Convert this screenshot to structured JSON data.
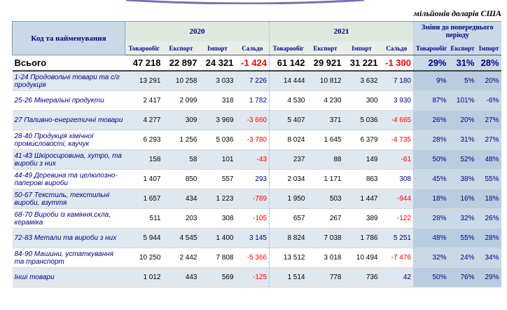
{
  "units": "мільйонів доларів США",
  "header": {
    "name": "Код та найменування",
    "year1": "2020",
    "year2": "2021",
    "change": "Зміни до попереднього періоду",
    "cols": [
      "Товарообіг",
      "Експорт",
      "Імпорт",
      "Сальдо",
      "Товарообіг",
      "Експорт",
      "Імпорт",
      "Сальдо",
      "Товарообіг",
      "Експорт",
      "Імпорт"
    ]
  },
  "total": {
    "name": "Всього",
    "values": [
      "47 218",
      "22 897",
      "24 321",
      "-1 424",
      "61 142",
      "29 921",
      "31 221",
      "-1 300",
      "29%",
      "31%",
      "28%"
    ]
  },
  "rows": [
    {
      "name": "1-24 Продовольчі товари та с/г продукція",
      "values": [
        "13 291",
        "10 258",
        "3 033",
        "7 226",
        "14 444",
        "10 812",
        "3 632",
        "7 180",
        "9%",
        "5%",
        "20%"
      ]
    },
    {
      "name": "25-26 Мінеральні продукти",
      "values": [
        "2 417",
        "2 099",
        "318",
        "1 782",
        "4 530",
        "4 230",
        "300",
        "3 930",
        "87%",
        "101%",
        "-6%"
      ]
    },
    {
      "name": "27 Паливно-енергетичні товари",
      "values": [
        "4 277",
        "309",
        "3 969",
        "-3 660",
        "5 407",
        "371",
        "5 036",
        "-4 665",
        "26%",
        "20%",
        "27%"
      ]
    },
    {
      "name": "28-40 Продукція хімічної промисловості, каучук",
      "values": [
        "6 293",
        "1 256",
        "5 036",
        "-3 780",
        "8 024",
        "1 645",
        "6 379",
        "-4 735",
        "28%",
        "31%",
        "27%"
      ]
    },
    {
      "name": "41-43 Шкіросировина, хутро, та вироби з них",
      "values": [
        "158",
        "58",
        "101",
        "-43",
        "237",
        "88",
        "149",
        "-61",
        "50%",
        "52%",
        "48%"
      ]
    },
    {
      "name": "44-49 Деревина та целюлозно-паперові вироби",
      "values": [
        "1 407",
        "850",
        "557",
        "293",
        "2 034",
        "1 171",
        "863",
        "308",
        "45%",
        "38%",
        "55%"
      ]
    },
    {
      "name": "50-67 Текстиль, текстильні вироби, взуття",
      "values": [
        "1 657",
        "434",
        "1 223",
        "-789",
        "1 950",
        "503",
        "1 447",
        "-944",
        "18%",
        "16%",
        "18%"
      ]
    },
    {
      "name": "68-70 Вироби із каміння,скла, кераміка",
      "values": [
        "511",
        "203",
        "308",
        "-105",
        "657",
        "267",
        "389",
        "-122",
        "28%",
        "32%",
        "26%"
      ]
    },
    {
      "name": "72-83 Метали та вироби з них",
      "values": [
        "5 944",
        "4 545",
        "1 400",
        "3 145",
        "8 824",
        "7 038",
        "1 786",
        "5 251",
        "48%",
        "55%",
        "28%"
      ]
    },
    {
      "name": "84-90 Машини, устаткування та транспорт",
      "values": [
        "10 250",
        "2 442",
        "7 808",
        "-5 366",
        "13 512",
        "3 018",
        "10 494",
        "-7 476",
        "32%",
        "24%",
        "34%"
      ]
    },
    {
      "name": "Інші товари",
      "values": [
        "1 012",
        "443",
        "569",
        "-125",
        "1 514",
        "778",
        "736",
        "42",
        "50%",
        "76%",
        "29%"
      ]
    }
  ],
  "colors": {
    "accent": "#000080",
    "negative": "#ff0000",
    "header_bg": "#c9d9e8"
  }
}
